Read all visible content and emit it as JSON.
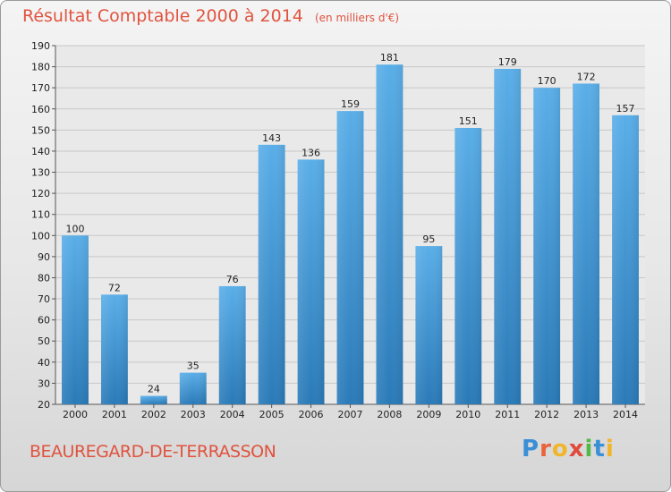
{
  "chart_data": {
    "type": "bar",
    "title": "Résultat Comptable 2000 à 2014",
    "subtitle": "(en milliers d'€)",
    "categories": [
      "2000",
      "2001",
      "2002",
      "2003",
      "2004",
      "2005",
      "2006",
      "2007",
      "2008",
      "2009",
      "2010",
      "2011",
      "2012",
      "2013",
      "2014"
    ],
    "values": [
      100,
      72,
      24,
      35,
      76,
      143,
      136,
      159,
      181,
      95,
      151,
      179,
      170,
      172,
      157
    ],
    "ylim": [
      20,
      190
    ],
    "yticks": [
      20,
      30,
      40,
      50,
      60,
      70,
      80,
      90,
      100,
      110,
      120,
      130,
      140,
      150,
      160,
      170,
      180,
      190
    ],
    "grid": true,
    "legend": "none",
    "bar_color_top": "#5aaee8",
    "bar_color_bottom": "#2a7ab8",
    "grid_color": "#c8c8c8"
  },
  "footer": {
    "commune": "BEAUREGARD-DE-TERRASSON",
    "brand_letters": [
      {
        "ch": "P",
        "color": "#3a8fd6"
      },
      {
        "ch": "r",
        "color": "#e8643a"
      },
      {
        "ch": "o",
        "color": "#f0b52b"
      },
      {
        "ch": "x",
        "color": "#e04a3c"
      },
      {
        "ch": "i",
        "color": "#52b848"
      },
      {
        "ch": "t",
        "color": "#3a8fd6"
      },
      {
        "ch": "i",
        "color": "#f0b52b"
      }
    ]
  }
}
